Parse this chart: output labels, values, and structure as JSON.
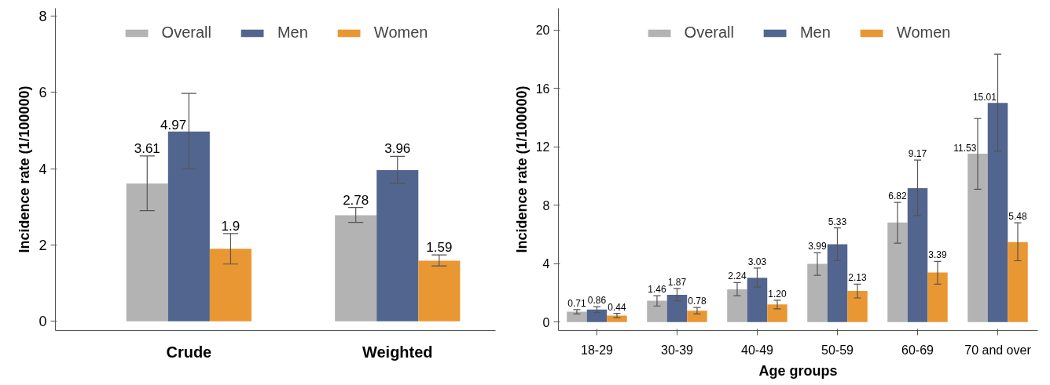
{
  "chart_data": [
    {
      "type": "bar",
      "ylabel": "Incidence rate (1/100000)",
      "categories": [
        "Crude",
        "Weighted"
      ],
      "ylim": [
        -0.24,
        8.2
      ],
      "yticks": [
        0,
        2,
        4,
        6,
        8
      ],
      "legend": "top",
      "grid": false,
      "series": [
        {
          "name": "Overall",
          "color": "#b3b3b3",
          "values": [
            3.61,
            2.78
          ],
          "errors": [
            [
              2.9,
              4.33
            ],
            [
              2.59,
              2.98
            ]
          ],
          "value_labels": [
            "3.61",
            "2.78"
          ]
        },
        {
          "name": "Men",
          "color": "#51658e",
          "values": [
            4.97,
            3.96
          ],
          "errors": [
            [
              3.99,
              5.97
            ],
            [
              3.62,
              4.32
            ]
          ],
          "value_labels": [
            "4.97",
            "3.96"
          ]
        },
        {
          "name": "Women",
          "color": "#e99733",
          "values": [
            1.9,
            1.59
          ],
          "errors": [
            [
              1.5,
              2.3
            ],
            [
              1.45,
              1.74
            ]
          ],
          "value_labels": [
            "1.9",
            "1.59"
          ]
        }
      ]
    },
    {
      "type": "bar",
      "xlabel": "Age groups",
      "ylabel": "Incidence rate (1/100000)",
      "categories": [
        "18-29",
        "30-39",
        "40-49",
        "50-59",
        "60-69",
        "70 and over"
      ],
      "ylim": [
        -0.58,
        21.5
      ],
      "yticks": [
        0,
        4,
        8,
        12,
        16,
        20
      ],
      "legend": "top",
      "grid": false,
      "series": [
        {
          "name": "Overall",
          "color": "#b3b3b3",
          "values": [
            0.71,
            1.46,
            2.24,
            3.99,
            6.82,
            11.53
          ],
          "errors": [
            [
              0.55,
              0.85
            ],
            [
              1.1,
              1.8
            ],
            [
              1.8,
              2.7
            ],
            [
              3.2,
              4.75
            ],
            [
              5.4,
              8.2
            ],
            [
              9.1,
              13.95
            ]
          ],
          "value_labels": [
            "0.71",
            "1.46",
            "2.24",
            "3.99",
            "6.82",
            "11.53"
          ]
        },
        {
          "name": "Men",
          "color": "#51658e",
          "values": [
            0.86,
            1.87,
            3.03,
            5.33,
            9.17,
            15.01
          ],
          "errors": [
            [
              0.65,
              1.05
            ],
            [
              1.45,
              2.3
            ],
            [
              2.4,
              3.7
            ],
            [
              4.2,
              6.45
            ],
            [
              7.3,
              11.1
            ],
            [
              11.7,
              18.35
            ]
          ],
          "value_labels": [
            "0.86",
            "1.87",
            "3.03",
            "5.33",
            "9.17",
            "15.01"
          ]
        },
        {
          "name": "Women",
          "color": "#e99733",
          "values": [
            0.44,
            0.78,
            1.2,
            2.13,
            3.39,
            5.48
          ],
          "errors": [
            [
              0.3,
              0.6
            ],
            [
              0.55,
              1.0
            ],
            [
              0.9,
              1.5
            ],
            [
              1.65,
              2.6
            ],
            [
              2.6,
              4.15
            ],
            [
              4.2,
              6.8
            ]
          ],
          "value_labels": [
            "0.44",
            "0.78",
            "1.20",
            "2.13",
            "3.39",
            "5.48"
          ]
        }
      ]
    }
  ]
}
